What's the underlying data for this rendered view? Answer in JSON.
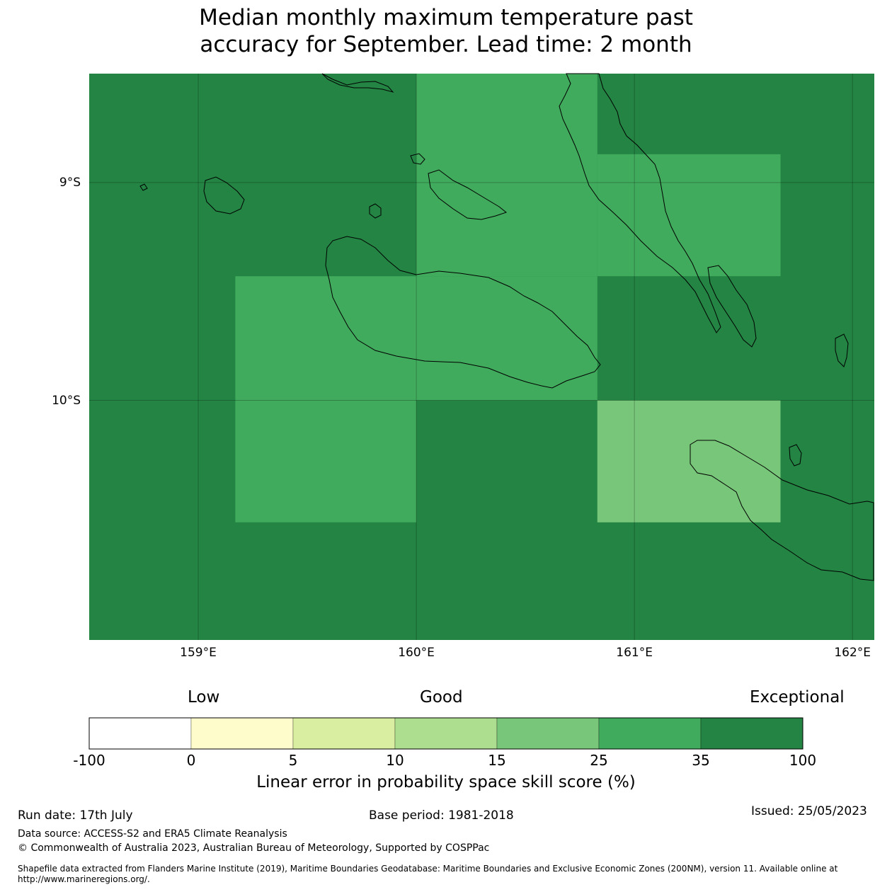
{
  "title": {
    "line1": "Median monthly maximum temperature past",
    "line2": "accuracy for September. Lead time: 2 month"
  },
  "map": {
    "lon_range": [
      158.5,
      162.1
    ],
    "lat_range": [
      -11.1,
      -8.5
    ],
    "lat_labels": [
      {
        "value": -9,
        "label": "9°S"
      },
      {
        "value": -10,
        "label": "10°S"
      }
    ],
    "lon_labels": [
      {
        "value": 159,
        "label": "159°E"
      },
      {
        "value": 160,
        "label": "160°E"
      },
      {
        "value": 161,
        "label": "161°E"
      },
      {
        "value": 162,
        "label": "162°E"
      }
    ],
    "background_class": "35-100",
    "cells": [
      {
        "lon_min": 160.0,
        "lon_max": 160.83,
        "lat_min": -9.43,
        "lat_max": -8.5,
        "class": "25-35"
      },
      {
        "lon_min": 160.83,
        "lon_max": 161.67,
        "lat_min": -9.43,
        "lat_max": -8.87,
        "class": "25-35"
      },
      {
        "lon_min": 159.17,
        "lon_max": 160.83,
        "lat_min": -10.0,
        "lat_max": -9.43,
        "class": "25-35"
      },
      {
        "lon_min": 159.17,
        "lon_max": 160.0,
        "lat_min": -10.56,
        "lat_max": -10.0,
        "class": "25-35"
      },
      {
        "lon_min": 160.83,
        "lon_max": 161.67,
        "lat_min": -10.56,
        "lat_max": -10.0,
        "class": "15-25"
      }
    ]
  },
  "colorbar": {
    "category_labels": {
      "low": "Low",
      "good": "Good",
      "exceptional": "Exceptional"
    },
    "ticks": [
      "-100",
      "0",
      "5",
      "10",
      "15",
      "25",
      "35",
      "100"
    ],
    "bins": [
      {
        "range": "-100-0",
        "color": "#ffffff"
      },
      {
        "range": "0-5",
        "color": "#fffccc"
      },
      {
        "range": "5-10",
        "color": "#d9eea1"
      },
      {
        "range": "10-15",
        "color": "#addd8e"
      },
      {
        "range": "15-25",
        "color": "#78c679"
      },
      {
        "range": "25-35",
        "color": "#41ab5d"
      },
      {
        "range": "35-100",
        "color": "#238443"
      }
    ],
    "label": "Linear error in probability space skill score (%)"
  },
  "footer": {
    "run_date": "Run date: 17th July",
    "base_period": "Base period: 1981-2018",
    "issued": "Issued: 25/05/2023",
    "data_source": "Data source: ACCESS-S2 and ERA5 Climate Reanalysis",
    "copyright": "© Commonwealth of Australia 2023, Australian Bureau of Meteorology, Supported by COSPPac",
    "shapefile": "Shapefile data extracted from Flanders Marine Institute (2019), Maritime Boundaries Geodatabase: Maritime Boundaries and Exclusive Economic Zones (200NM), version 11. Available online at http://www.marineregions.org/."
  }
}
